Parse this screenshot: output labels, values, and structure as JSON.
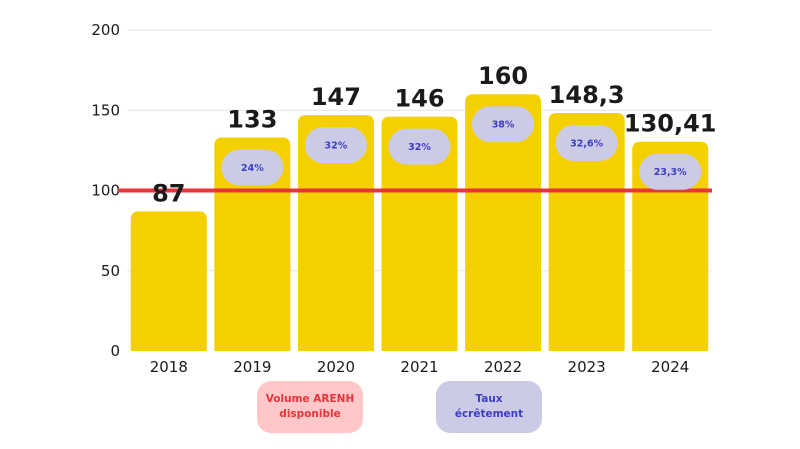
{
  "chart_data": {
    "type": "bar",
    "categories": [
      "2018",
      "2019",
      "2020",
      "2021",
      "2022",
      "2023",
      "2024"
    ],
    "values": [
      87,
      133,
      147,
      146,
      160,
      148.3,
      130.41
    ],
    "value_labels": [
      "87",
      "133",
      "147",
      "146",
      "160",
      "148,3",
      "130,41"
    ],
    "rates": [
      "",
      "24%",
      "32%",
      "32%",
      "38%",
      "32,6%",
      "23,3%"
    ],
    "reference_line": 100,
    "yticks": [
      "0",
      "50",
      "100",
      "150",
      "200"
    ],
    "ylim": [
      0,
      200
    ],
    "grid": true,
    "legend": [
      {
        "lines": [
          "Volume ARENH",
          "disponible"
        ]
      },
      {
        "lines": [
          "Taux",
          "écrêtement"
        ]
      }
    ],
    "legend_position": "bottom"
  },
  "colors": {
    "bar": "#f5d000",
    "reference_line": "#e8343a",
    "pill_fill": "#cccbe6",
    "pill_text": "#3d3dc4",
    "legend_arenh_fill": "#ffc7c8",
    "legend_arenh_text": "#e8343a",
    "legend_rate_fill": "#cccbe6",
    "legend_rate_text": "#3d3dc4",
    "grid": "#e3e3e3"
  }
}
